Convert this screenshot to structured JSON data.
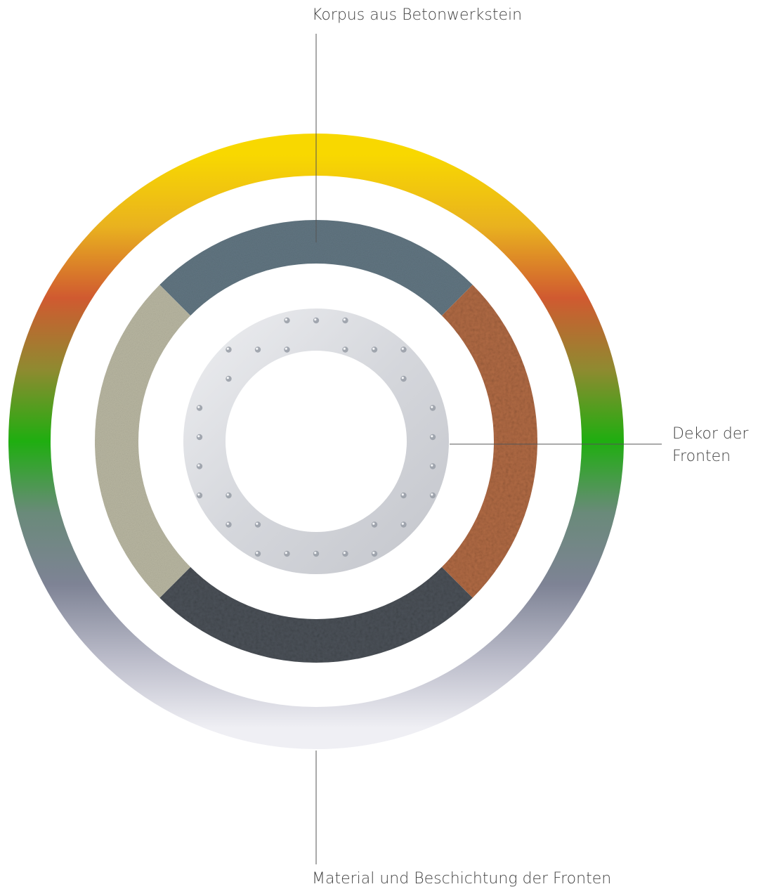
{
  "labels": {
    "top": "Korpus aus Betonwerkstein",
    "right_line1": "Dekor der",
    "right_line2": "Fronten",
    "bottom": "Material und Beschichtung der Fronten"
  },
  "rings": {
    "outer": {
      "gradient_colors": [
        "#f8d800",
        "#e9b21f",
        "#d05a30",
        "#8f8a30",
        "#1fae10",
        "#6a8a7a",
        "#7e8395",
        "#b9bac8",
        "#efeff4"
      ]
    },
    "middle": {
      "segments": [
        {
          "name": "concrete-slate",
          "color": "#617581"
        },
        {
          "name": "copper-granule",
          "color": "#b06a44"
        },
        {
          "name": "granite-dark",
          "color": "#4b5158"
        },
        {
          "name": "sandstone-beige",
          "color": "#b8b6a1"
        }
      ]
    },
    "inner": {
      "color": "#d9dbe0",
      "rivet_color": "#9aa0a8"
    }
  },
  "lines": {
    "color": "#555555"
  }
}
